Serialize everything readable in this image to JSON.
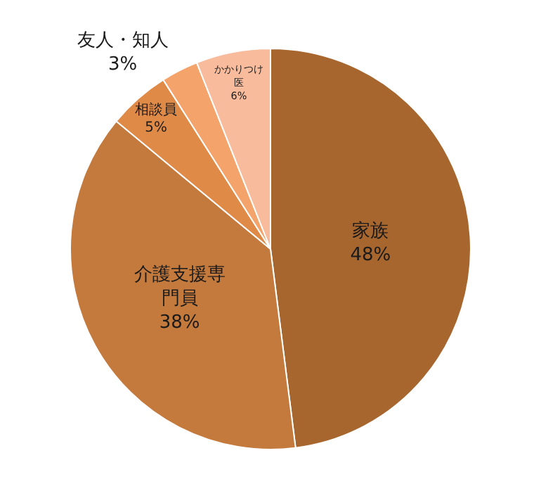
{
  "chart_data": {
    "type": "pie",
    "categories": [
      "家族",
      "介護支援専門員",
      "相談員",
      "友人・知人",
      "かかりつけ医"
    ],
    "values": [
      48,
      38,
      5,
      3,
      6
    ],
    "colors": [
      "#a8662f",
      "#c47a3c",
      "#e08a48",
      "#f4a36a",
      "#f8bb9c"
    ],
    "value_labels": [
      "48%",
      "38%",
      "5%",
      "3%",
      "6%"
    ]
  }
}
